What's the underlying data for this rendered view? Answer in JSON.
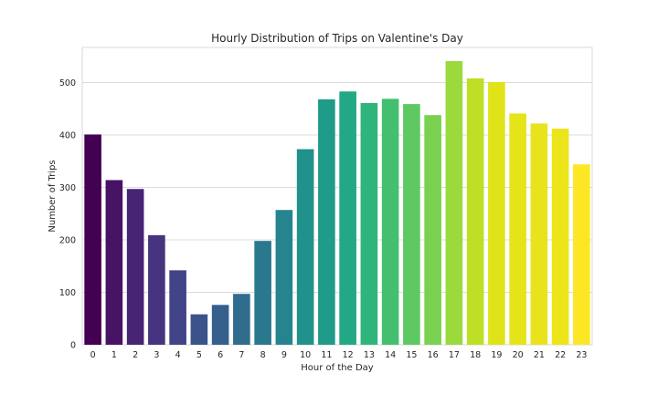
{
  "chart_data": {
    "type": "bar",
    "title": "Hourly Distribution of Trips on Valentine's Day",
    "xlabel": "Hour of the Day",
    "ylabel": "Number of Trips",
    "categories": [
      "0",
      "1",
      "2",
      "3",
      "4",
      "5",
      "6",
      "7",
      "8",
      "9",
      "10",
      "11",
      "12",
      "13",
      "14",
      "15",
      "16",
      "17",
      "18",
      "19",
      "20",
      "21",
      "22",
      "23"
    ],
    "values": [
      401,
      314,
      297,
      209,
      142,
      58,
      76,
      97,
      198,
      257,
      373,
      468,
      483,
      461,
      469,
      459,
      438,
      541,
      508,
      501,
      441,
      422,
      412,
      344
    ],
    "ylim": [
      0,
      567
    ],
    "yticks": [
      0,
      100,
      200,
      300,
      400,
      500
    ],
    "grid": "horizontal",
    "palette": "viridis",
    "colors": [
      "#440154",
      "#471365",
      "#482475",
      "#463480",
      "#414487",
      "#3b528b",
      "#355f8d",
      "#2f6c8e",
      "#2a788e",
      "#25848e",
      "#21918c",
      "#1e9c89",
      "#22a884",
      "#2fb47c",
      "#44bf70",
      "#5ec962",
      "#7ad151",
      "#9bd93c",
      "#bddf26",
      "#dfe318",
      "#e5e419",
      "#e8e31c",
      "#ebe51a",
      "#fde725"
    ]
  }
}
